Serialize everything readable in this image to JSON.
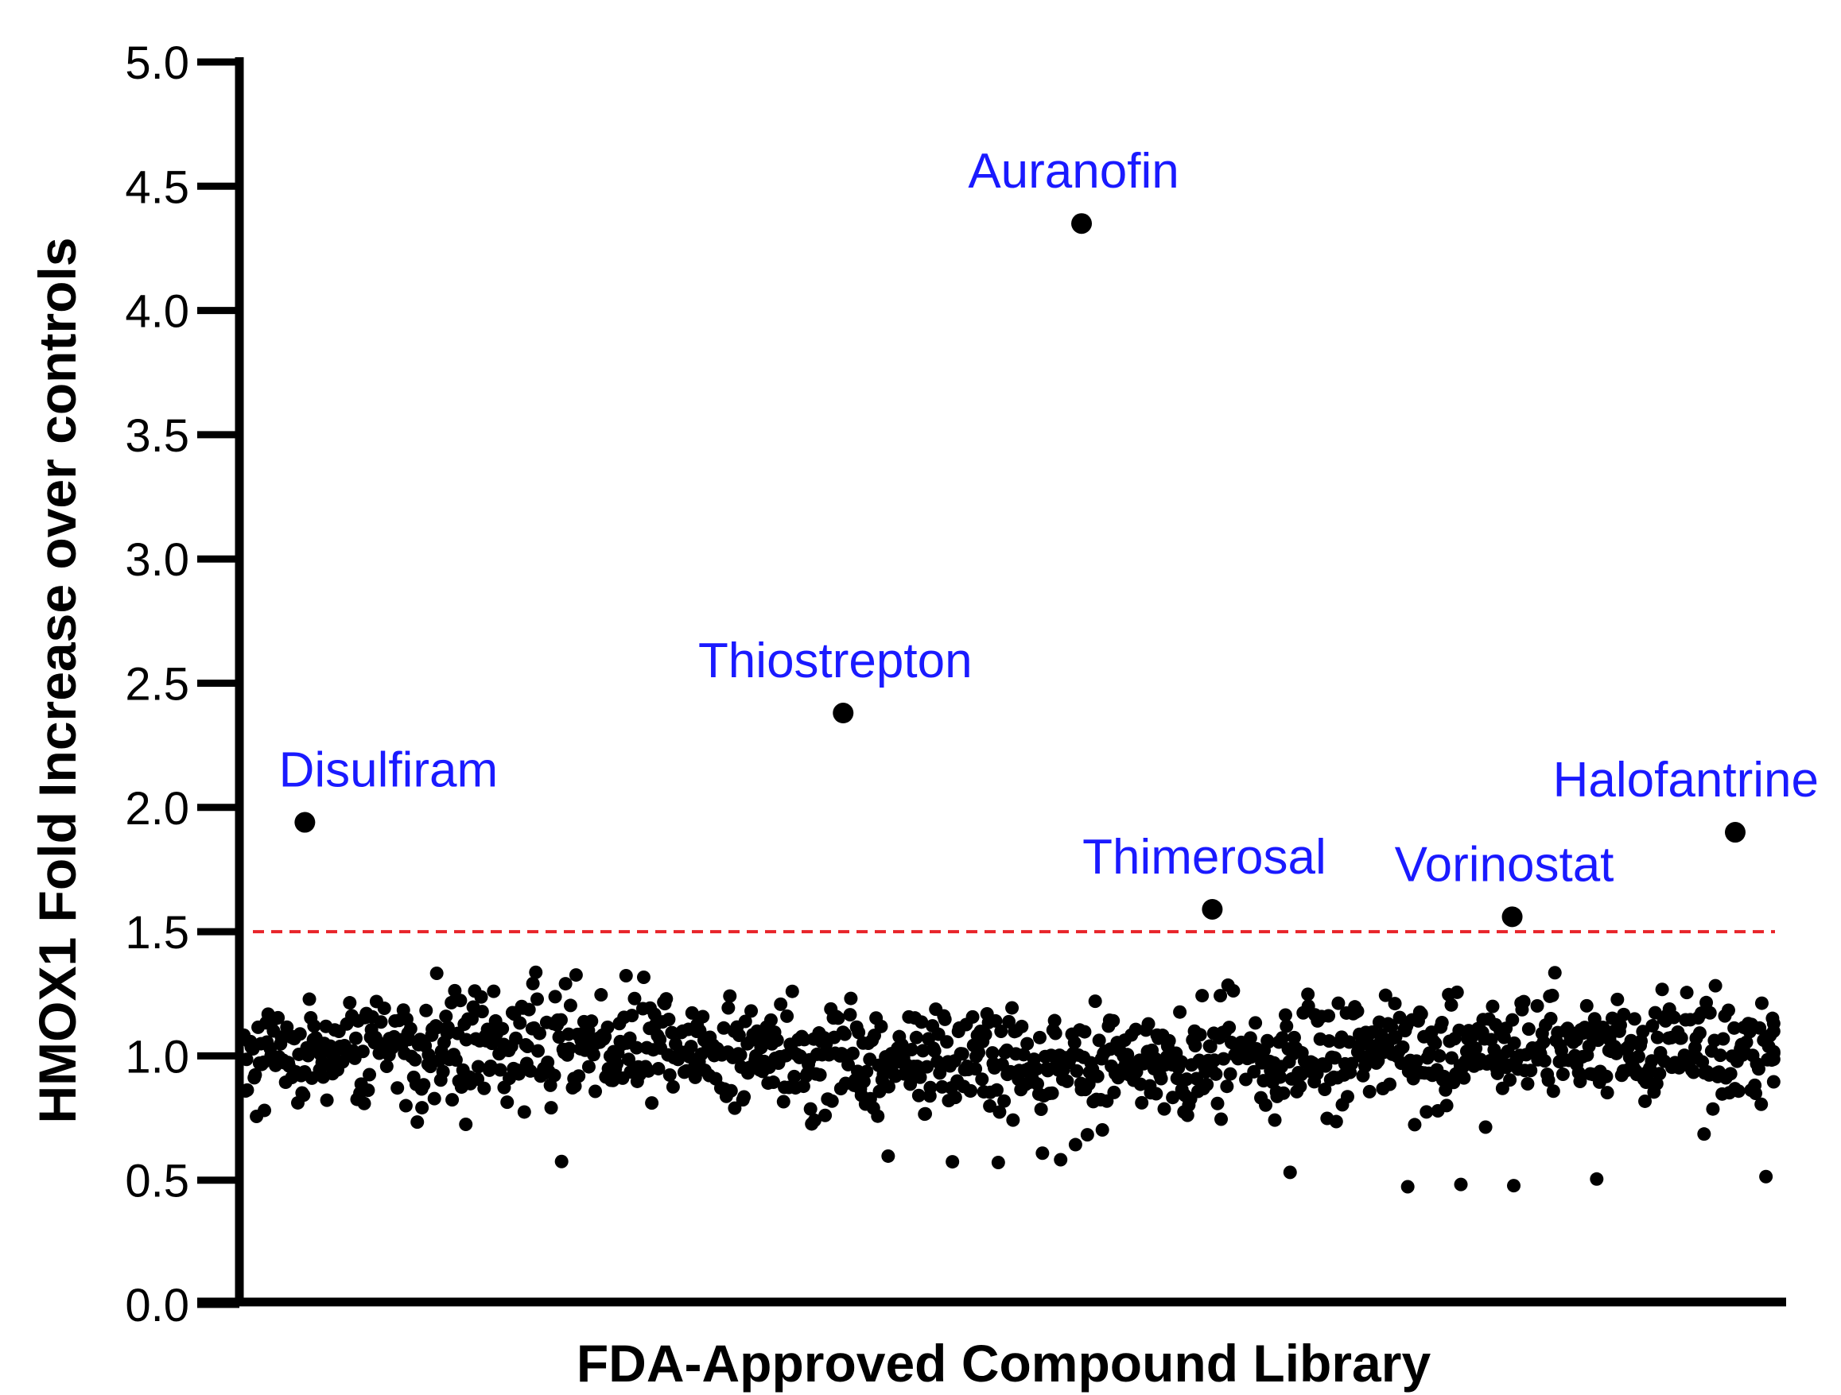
{
  "chart_data": {
    "type": "scatter",
    "xlabel": "FDA-Approved Compound Library",
    "ylabel": "HMOX1 Fold Increase over controls",
    "ylim": [
      0.0,
      5.0
    ],
    "yticks": [
      "0.0",
      "0.5",
      "1.0",
      "1.5",
      "2.0",
      "2.5",
      "3.0",
      "3.5",
      "4.0",
      "4.5",
      "5.0"
    ],
    "threshold": {
      "y": 1.5,
      "color": "#e8242a",
      "style": "dashed"
    },
    "point_color": "#000000",
    "annotation_color": "#1a1aff",
    "highlighted": [
      {
        "name": "Disulfiram",
        "x": 0.04,
        "y": 1.94
      },
      {
        "name": "Thiostrepton",
        "x": 0.39,
        "y": 2.38
      },
      {
        "name": "Auranofin",
        "x": 0.545,
        "y": 4.35
      },
      {
        "name": "Thimerosal",
        "x": 0.63,
        "y": 1.59
      },
      {
        "name": "Vorinostat",
        "x": 0.825,
        "y": 1.56
      },
      {
        "name": "Halofantrine",
        "x": 0.97,
        "y": 1.9
      }
    ],
    "background_cloud": {
      "n_points": 1180,
      "center": 1.0,
      "spread": 0.11,
      "min": 0.47,
      "max": 1.39
    }
  }
}
